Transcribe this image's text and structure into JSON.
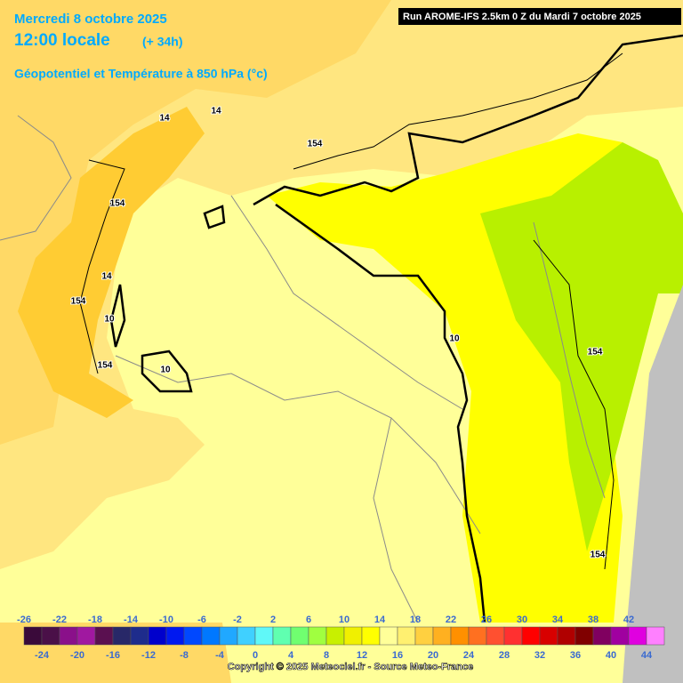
{
  "header": {
    "date": "Mercredi 8 octobre 2025",
    "time": "12:00 locale",
    "lead": "(+ 34h)",
    "parameter": "Géopotentiel et Température à 850 hPa (°c)",
    "run": "Run AROME-IFS 2.5km 0 Z du Mardi 7 octobre 2025"
  },
  "map": {
    "contour_labels": [
      "14",
      "14",
      "154",
      "154",
      "14",
      "154",
      "10",
      "154",
      "10",
      "10",
      "154",
      "154"
    ]
  },
  "colorbar": {
    "top_labels": [
      -26,
      -22,
      -18,
      -14,
      -10,
      -6,
      -2,
      2,
      6,
      10,
      14,
      18,
      22,
      26,
      30,
      34,
      38,
      42
    ],
    "bottom_labels": [
      -24,
      -20,
      -16,
      -12,
      -8,
      -4,
      0,
      4,
      8,
      12,
      16,
      20,
      24,
      28,
      32,
      36,
      40,
      44
    ],
    "colors": [
      "#3a0a3a",
      "#4a1048",
      "#8a108a",
      "#a018a0",
      "#5a1050",
      "#282868",
      "#1e2c8c",
      "#0000cc",
      "#0018f0",
      "#0048ff",
      "#0078ff",
      "#20a8ff",
      "#40d0ff",
      "#60f8f8",
      "#60ffb0",
      "#70ff70",
      "#a0ff40",
      "#c8f000",
      "#f0f000",
      "#ffff00",
      "#ffff99",
      "#fff070",
      "#ffd040",
      "#ffb020",
      "#ff9000",
      "#ff7020",
      "#ff5030",
      "#ff3030",
      "#ff0000",
      "#d80000",
      "#b00000",
      "#800000",
      "#800060",
      "#a000a0",
      "#e000e0",
      "#ff80ff"
    ]
  },
  "footer": {
    "copyright": "Copyright © 2025 Meteociel.fr - Source Meteo-France"
  }
}
